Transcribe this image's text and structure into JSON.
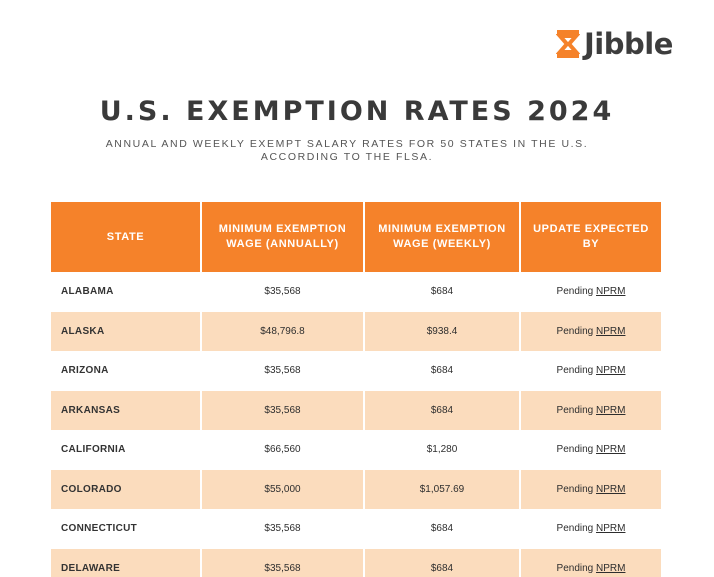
{
  "brand": {
    "name": "Jibble",
    "accent": "#f5822a"
  },
  "header": {
    "title": "U.S. EXEMPTION RATES 2024",
    "subtitle_line1": "ANNUAL AND WEEKLY EXEMPT SALARY RATES FOR 50 STATES IN THE U.S.",
    "subtitle_line2": "ACCORDING TO THE FLSA."
  },
  "table": {
    "columns": [
      "STATE",
      "MINIMUM EXEMPTION WAGE (ANNUALLY)",
      "MINIMUM EXEMPTION WAGE (WEEKLY)",
      "UPDATE EXPECTED BY"
    ],
    "rows": [
      {
        "state": "ALABAMA",
        "annual": "$35,568",
        "weekly": "$684",
        "update": "Pending",
        "link": "NPRM"
      },
      {
        "state": "ALASKA",
        "annual": "$48,796.8",
        "weekly": "$938.4",
        "update": "Pending",
        "link": "NPRM"
      },
      {
        "state": "ARIZONA",
        "annual": "$35,568",
        "weekly": "$684",
        "update": "Pending",
        "link": "NPRM"
      },
      {
        "state": "ARKANSAS",
        "annual": "$35,568",
        "weekly": "$684",
        "update": "Pending",
        "link": "NPRM"
      },
      {
        "state": "CALIFORNIA",
        "annual": "$66,560",
        "weekly": "$1,280",
        "update": "Pending",
        "link": "NPRM"
      },
      {
        "state": "COLORADO",
        "annual": "$55,000",
        "weekly": "$1,057.69",
        "update": "Pending",
        "link": "NPRM"
      },
      {
        "state": "CONNECTICUT",
        "annual": "$35,568",
        "weekly": "$684",
        "update": "Pending",
        "link": "NPRM"
      },
      {
        "state": "DELAWARE",
        "annual": "$35,568",
        "weekly": "$684",
        "update": "Pending",
        "link": "NPRM"
      }
    ]
  }
}
